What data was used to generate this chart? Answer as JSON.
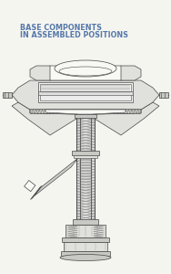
{
  "title_line1": "BASE COMPONENTS",
  "title_line2": "IN ASSEMBLED POSITIONS",
  "title_color": "#5577aa",
  "title_fontsize": 5.8,
  "bg_color": "#f5f5f0",
  "line_color": "#444444",
  "fill_white": "#f8f8f5",
  "fill_light": "#e0e0dc",
  "fill_med": "#c8c8c4",
  "fill_dark": "#b0b0ac"
}
